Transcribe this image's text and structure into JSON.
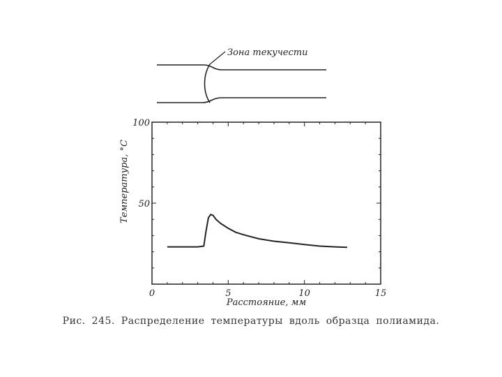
{
  "specimen": {
    "annotation": "Зона текучести"
  },
  "chart_data": {
    "type": "line",
    "title": "",
    "xlabel": "Расстояние, мм",
    "ylabel": "Температура, °С",
    "xlim": [
      0,
      15
    ],
    "ylim": [
      0,
      100
    ],
    "x_ticks": [
      "0",
      "5",
      "10",
      "15"
    ],
    "y_ticks": [
      "50",
      "100"
    ],
    "grid": false,
    "series": [
      {
        "x": [
          1.0,
          3.0,
          3.4,
          3.55,
          3.7,
          3.85,
          4.0,
          4.2,
          4.5,
          5.0,
          5.5,
          6.0,
          7.0,
          8.0,
          9.0,
          10.0,
          11.0,
          12.0,
          12.8
        ],
        "y": [
          23.0,
          23.0,
          23.5,
          33.0,
          41.0,
          43.0,
          42.5,
          40.0,
          37.5,
          34.5,
          32.0,
          30.5,
          28.0,
          26.5,
          25.5,
          24.5,
          23.5,
          23.0,
          22.7
        ]
      }
    ]
  },
  "caption": {
    "label": "Рис. 245.",
    "text": "Распределение температуры вдоль образца полиамида."
  }
}
